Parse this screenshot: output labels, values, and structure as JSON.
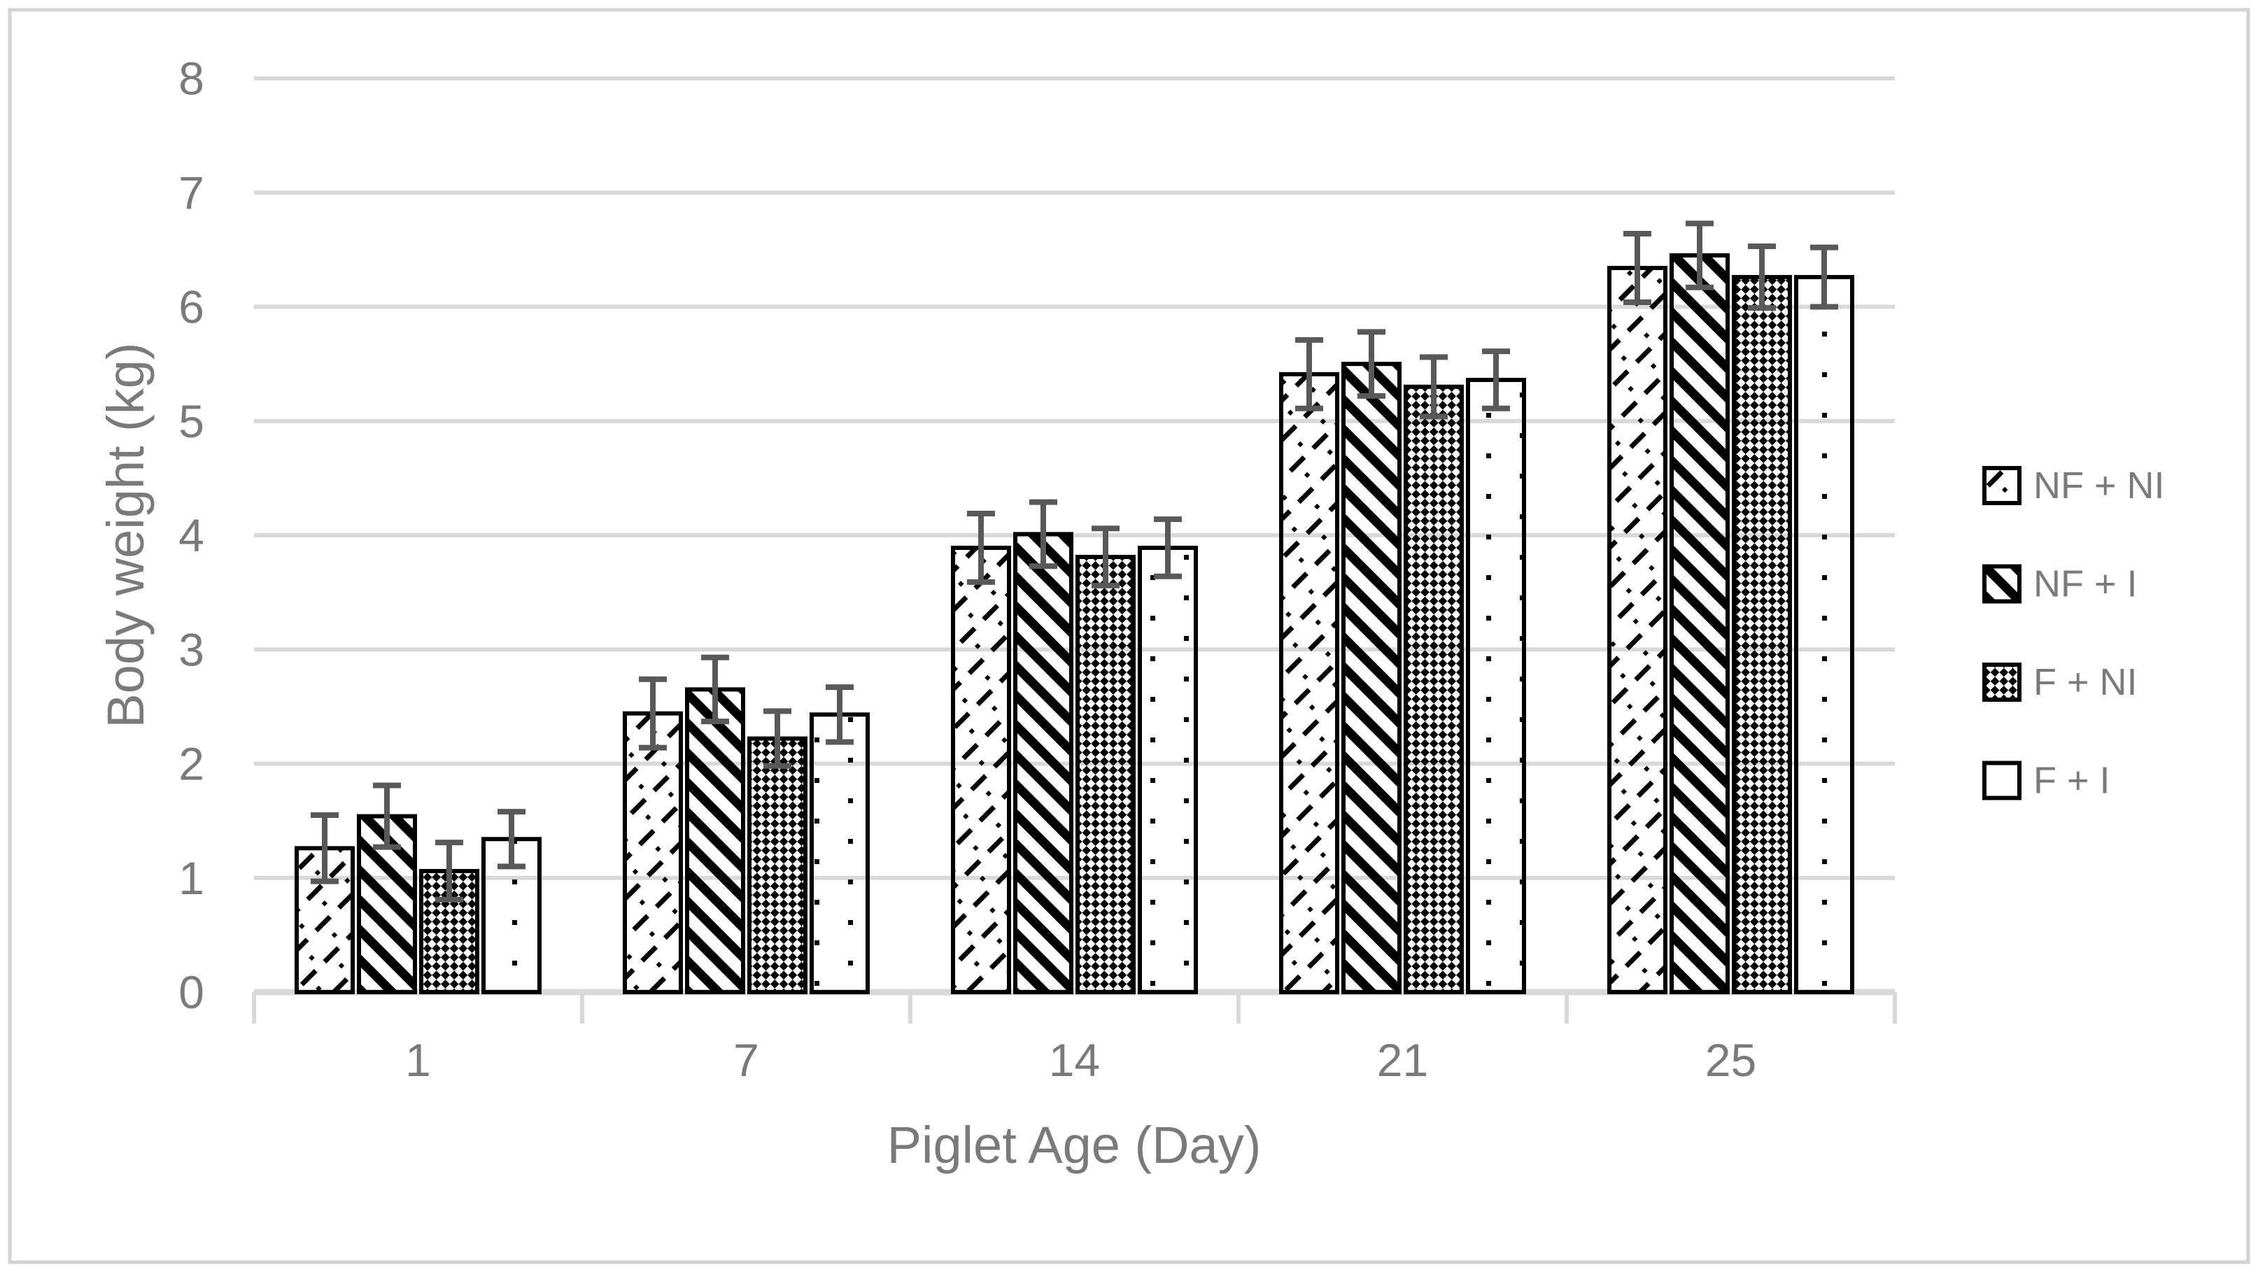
{
  "figure": {
    "background": "#ffffff",
    "border_color": "#d2d2d2"
  },
  "chart_data": {
    "type": "bar",
    "title": "",
    "xlabel": "Piglet Age (Day)",
    "ylabel": "Body weight (kg)",
    "categories": [
      "1",
      "7",
      "14",
      "21",
      "25"
    ],
    "series": [
      {
        "name": "NF + NI",
        "pattern": "light-upward-diagonal-dashes",
        "values": [
          1.26,
          2.44,
          3.89,
          5.41,
          6.34
        ],
        "errors": [
          0.29,
          0.3,
          0.3,
          0.3,
          0.3
        ]
      },
      {
        "name": "NF + I",
        "pattern": "wide-downward-diagonal-stripes",
        "values": [
          1.54,
          2.65,
          4.01,
          5.5,
          6.45
        ],
        "errors": [
          0.27,
          0.28,
          0.28,
          0.28,
          0.28
        ]
      },
      {
        "name": "F + NI",
        "pattern": "diamond-checkerboard",
        "values": [
          1.06,
          2.22,
          3.81,
          5.3,
          6.26
        ],
        "errors": [
          0.25,
          0.24,
          0.25,
          0.26,
          0.27
        ]
      },
      {
        "name": "F + I",
        "pattern": "sparse-dots",
        "values": [
          1.34,
          2.43,
          3.89,
          5.36,
          6.26
        ],
        "errors": [
          0.24,
          0.24,
          0.25,
          0.25,
          0.26
        ]
      }
    ],
    "ylim": [
      0,
      8
    ],
    "yticks": [
      0,
      1,
      2,
      3,
      4,
      5,
      6,
      7,
      8
    ],
    "grid": true,
    "legend_position": "right",
    "colors": {
      "bar_fill": "#ffffff",
      "bar_outline": "#000000",
      "error_bar": "#595959",
      "gridline": "#d9d9d9",
      "axis_line": "#d9d9d9",
      "text": "#7a7a7a"
    }
  }
}
